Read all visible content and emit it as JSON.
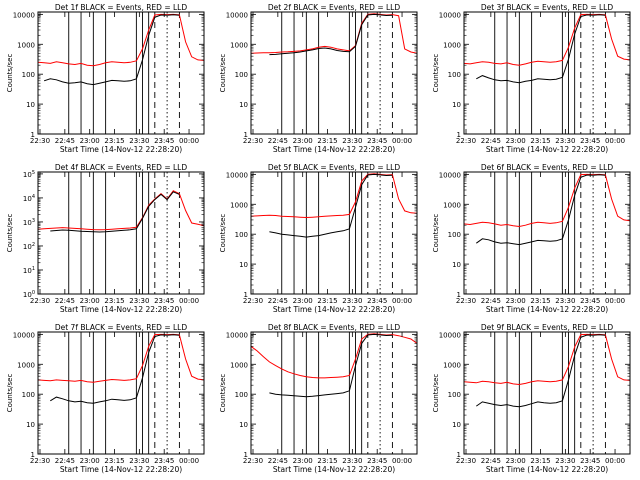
{
  "figure": {
    "xlabel": "Start Time (14-Nov-12 22:28:20)",
    "ylabel": "Counts/sec"
  },
  "chart_data": [
    {
      "type": "line",
      "title": "Det 1f BLACK = Events, RED = LLD",
      "xlabel": "Start Time (14-Nov-12 22:28:20)",
      "ylabel": "Counts/sec",
      "xticks": [
        "22:30",
        "22:45",
        "23:00",
        "23:15",
        "23:30",
        "23:45",
        "00:00"
      ],
      "ylog": true,
      "ylim": [
        1,
        12000
      ],
      "ytick_style": "plain",
      "series": [
        {
          "color": "#ff0000",
          "values": [
            250,
            240,
            230,
            260,
            240,
            220,
            210,
            230,
            200,
            190,
            210,
            240,
            260,
            250,
            240,
            250,
            280,
            700,
            3000,
            9500,
            10000,
            9800,
            10000,
            9700,
            1200,
            380,
            300,
            290
          ]
        },
        {
          "color": "#000000",
          "values": [
            null,
            60,
            70,
            65,
            55,
            50,
            52,
            55,
            48,
            45,
            50,
            55,
            62,
            60,
            58,
            60,
            70,
            300,
            2000,
            8000,
            9500,
            9300,
            9700,
            9400,
            null,
            null,
            null,
            null
          ]
        }
      ],
      "markers": {
        "solid": [
          5,
          7,
          9,
          11,
          16,
          17,
          18
        ],
        "dashed": [
          19,
          23
        ],
        "dotted": [
          21
        ]
      }
    },
    {
      "type": "line",
      "title": "Det 2f BLACK = Events, RED = LLD",
      "xlabel": "Start Time (14-Nov-12 22:28:20)",
      "ylabel": "Counts/sec",
      "xticks": [
        "22:30",
        "22:45",
        "23:00",
        "23:15",
        "23:30",
        "23:45",
        "00:00"
      ],
      "ylog": true,
      "ylim": [
        1,
        12000
      ],
      "ytick_style": "plain",
      "series": [
        {
          "color": "#ff0000",
          "values": [
            500,
            510,
            520,
            520,
            530,
            550,
            560,
            580,
            600,
            650,
            700,
            800,
            850,
            800,
            700,
            650,
            600,
            900,
            5000,
            10000,
            10500,
            10000,
            9500,
            9800,
            9000,
            700,
            550,
            500
          ]
        },
        {
          "color": "#000000",
          "values": [
            null,
            null,
            null,
            450,
            460,
            480,
            500,
            520,
            550,
            600,
            650,
            720,
            750,
            700,
            620,
            580,
            560,
            850,
            4500,
            9500,
            10000,
            9600,
            9200,
            9400,
            null,
            null,
            null,
            null
          ]
        }
      ],
      "markers": {
        "solid": [
          5,
          7,
          9,
          11,
          16,
          17,
          18
        ],
        "dashed": [
          19,
          23
        ],
        "dotted": [
          21
        ]
      }
    },
    {
      "type": "line",
      "title": "Det 3f BLACK = Events, RED = LLD",
      "xlabel": "Start Time (14-Nov-12 22:28:20)",
      "ylabel": "Counts/sec",
      "xticks": [
        "22:30",
        "22:45",
        "23:00",
        "23:15",
        "23:30",
        "23:45",
        "00:00"
      ],
      "ylog": true,
      "ylim": [
        1,
        12000
      ],
      "ytick_style": "plain",
      "series": [
        {
          "color": "#ff0000",
          "values": [
            230,
            220,
            240,
            260,
            250,
            230,
            220,
            240,
            210,
            200,
            220,
            250,
            270,
            260,
            250,
            260,
            290,
            800,
            3500,
            9800,
            10000,
            9800,
            10000,
            9600,
            1500,
            400,
            320,
            300
          ]
        },
        {
          "color": "#000000",
          "values": [
            null,
            null,
            70,
            90,
            75,
            65,
            60,
            62,
            55,
            52,
            58,
            62,
            70,
            68,
            65,
            68,
            78,
            320,
            2200,
            8500,
            9600,
            9300,
            9700,
            9300,
            null,
            null,
            null,
            null
          ]
        }
      ],
      "markers": {
        "solid": [
          5,
          7,
          9,
          11,
          16,
          17,
          18
        ],
        "dashed": [
          19,
          23
        ],
        "dotted": [
          21
        ]
      }
    },
    {
      "type": "line",
      "title": "Det 4f BLACK = Events, RED = LLD",
      "xlabel": "Start Time (14-Nov-12 22:28:20)",
      "ylabel": "Counts/sec",
      "xticks": [
        "22:30",
        "22:45",
        "23:00",
        "23:15",
        "23:30",
        "23:45",
        "00:00"
      ],
      "ylog": true,
      "ylim": [
        1,
        120000
      ],
      "ytick_style": "exp",
      "series": [
        {
          "color": "#ff0000",
          "values": [
            500,
            520,
            540,
            560,
            580,
            560,
            540,
            520,
            500,
            480,
            470,
            480,
            500,
            520,
            540,
            560,
            600,
            1500,
            5000,
            9000,
            15000,
            9000,
            20000,
            15000,
            3000,
            900,
            800,
            700
          ]
        },
        {
          "color": "#000000",
          "values": [
            null,
            null,
            420,
            440,
            460,
            450,
            430,
            410,
            400,
            390,
            380,
            390,
            410,
            430,
            450,
            470,
            520,
            1400,
            4500,
            8500,
            14000,
            8500,
            18000,
            14000,
            null,
            null,
            null,
            null
          ]
        }
      ],
      "markers": {
        "solid": [
          5,
          7,
          9,
          11,
          16,
          17,
          18
        ],
        "dashed": [
          19,
          23
        ],
        "dotted": [
          21
        ]
      }
    },
    {
      "type": "line",
      "title": "Det 5f BLACK = Events, RED = LLD",
      "xlabel": "Start Time (14-Nov-12 22:28:20)",
      "ylabel": "Counts/sec",
      "xticks": [
        "22:30",
        "22:45",
        "23:00",
        "23:15",
        "23:30",
        "23:45",
        "00:00"
      ],
      "ylog": true,
      "ylim": [
        1,
        12000
      ],
      "ytick_style": "plain",
      "series": [
        {
          "color": "#ff0000",
          "values": [
            400,
            410,
            420,
            430,
            420,
            400,
            390,
            380,
            370,
            360,
            370,
            380,
            400,
            410,
            420,
            430,
            460,
            1200,
            6000,
            10000,
            10500,
            10000,
            9500,
            9800,
            1500,
            600,
            520,
            500
          ]
        },
        {
          "color": "#000000",
          "values": [
            null,
            null,
            null,
            120,
            110,
            100,
            95,
            90,
            85,
            80,
            85,
            90,
            100,
            110,
            120,
            130,
            150,
            800,
            4500,
            9500,
            10000,
            9600,
            9200,
            9400,
            null,
            null,
            null,
            null
          ]
        }
      ],
      "markers": {
        "solid": [
          5,
          7,
          9,
          11,
          16,
          17,
          18
        ],
        "dashed": [
          19,
          23
        ],
        "dotted": [
          21
        ]
      }
    },
    {
      "type": "line",
      "title": "Det 6f BLACK = Events, RED = LLD",
      "xlabel": "Start Time (14-Nov-12 22:28:20)",
      "ylabel": "Counts/sec",
      "xticks": [
        "22:30",
        "22:45",
        "23:00",
        "23:15",
        "23:30",
        "23:45",
        "00:00"
      ],
      "ylog": true,
      "ylim": [
        1,
        12000
      ],
      "ytick_style": "plain",
      "series": [
        {
          "color": "#ff0000",
          "values": [
            220,
            210,
            230,
            250,
            240,
            220,
            200,
            210,
            190,
            180,
            200,
            230,
            250,
            240,
            230,
            240,
            270,
            800,
            3500,
            9800,
            10000,
            9800,
            10000,
            9600,
            1500,
            400,
            300,
            280
          ]
        },
        {
          "color": "#000000",
          "values": [
            null,
            null,
            50,
            70,
            65,
            55,
            50,
            52,
            48,
            45,
            50,
            55,
            62,
            60,
            58,
            60,
            70,
            300,
            2000,
            8000,
            9500,
            9300,
            9700,
            9400,
            null,
            null,
            null,
            null
          ]
        }
      ],
      "markers": {
        "solid": [
          5,
          7,
          9,
          11,
          16,
          17,
          18
        ],
        "dashed": [
          19,
          23
        ],
        "dotted": [
          21
        ]
      }
    },
    {
      "type": "line",
      "title": "Det 7f BLACK = Events, RED = LLD",
      "xlabel": "Start Time (14-Nov-12 22:28:20)",
      "ylabel": "Counts/sec",
      "xticks": [
        "22:30",
        "22:45",
        "23:00",
        "23:15",
        "23:30",
        "23:45",
        "00:00"
      ],
      "ylog": true,
      "ylim": [
        1,
        12000
      ],
      "ytick_style": "plain",
      "series": [
        {
          "color": "#ff0000",
          "values": [
            300,
            290,
            280,
            300,
            290,
            280,
            270,
            290,
            260,
            250,
            270,
            290,
            310,
            300,
            290,
            300,
            330,
            900,
            4000,
            9800,
            10000,
            9800,
            10000,
            9600,
            1500,
            400,
            320,
            300
          ]
        },
        {
          "color": "#000000",
          "values": [
            null,
            null,
            60,
            80,
            70,
            60,
            55,
            58,
            52,
            50,
            55,
            60,
            68,
            65,
            62,
            65,
            75,
            350,
            2500,
            8500,
            9600,
            9300,
            9700,
            9300,
            null,
            null,
            null,
            null
          ]
        }
      ],
      "markers": {
        "solid": [
          5,
          7,
          9,
          11,
          16,
          17,
          18
        ],
        "dashed": [
          19,
          23
        ],
        "dotted": [
          21
        ]
      }
    },
    {
      "type": "line",
      "title": "Det 8f BLACK = Events, RED = LLD",
      "xlabel": "Start Time (14-Nov-12 22:28:20)",
      "ylabel": "Counts/sec",
      "xticks": [
        "22:30",
        "22:45",
        "23:00",
        "23:15",
        "23:30",
        "23:45",
        "00:00"
      ],
      "ylog": true,
      "ylim": [
        1,
        12000
      ],
      "ytick_style": "plain",
      "series": [
        {
          "color": "#ff0000",
          "values": [
            4000,
            2800,
            1800,
            1200,
            900,
            700,
            560,
            480,
            420,
            380,
            360,
            350,
            350,
            360,
            370,
            380,
            420,
            1500,
            7000,
            10000,
            10500,
            10000,
            9500,
            9800,
            9000,
            8000,
            7000,
            5000
          ]
        },
        {
          "color": "#000000",
          "values": [
            null,
            null,
            null,
            110,
            100,
            95,
            92,
            88,
            85,
            82,
            85,
            90,
            95,
            100,
            105,
            110,
            130,
            900,
            5000,
            9500,
            10000,
            9600,
            9200,
            9400,
            null,
            null,
            null,
            null
          ]
        }
      ],
      "markers": {
        "solid": [
          5,
          7,
          9,
          11,
          16,
          17,
          18
        ],
        "dashed": [
          19,
          23
        ],
        "dotted": [
          21
        ]
      }
    },
    {
      "type": "line",
      "title": "Det 9f BLACK = Events, RED = LLD",
      "xlabel": "Start Time (14-Nov-12 22:28:20)",
      "ylabel": "Counts/sec",
      "xticks": [
        "22:30",
        "22:45",
        "23:00",
        "23:15",
        "23:30",
        "23:45",
        "00:00"
      ],
      "ylog": true,
      "ylim": [
        1,
        12000
      ],
      "ytick_style": "plain",
      "series": [
        {
          "color": "#ff0000",
          "values": [
            260,
            250,
            240,
            270,
            260,
            240,
            230,
            250,
            220,
            210,
            230,
            260,
            280,
            270,
            260,
            270,
            300,
            850,
            3800,
            9800,
            10000,
            9800,
            10000,
            9600,
            1500,
            380,
            300,
            290
          ]
        },
        {
          "color": "#000000",
          "values": [
            null,
            null,
            40,
            55,
            50,
            45,
            42,
            45,
            40,
            38,
            42,
            48,
            55,
            52,
            50,
            52,
            60,
            300,
            2000,
            8000,
            9500,
            9300,
            9700,
            9400,
            null,
            null,
            null,
            null
          ]
        }
      ],
      "markers": {
        "solid": [
          5,
          7,
          9,
          11,
          16,
          17,
          18
        ],
        "dashed": [
          19,
          23
        ],
        "dotted": [
          21
        ]
      }
    }
  ]
}
